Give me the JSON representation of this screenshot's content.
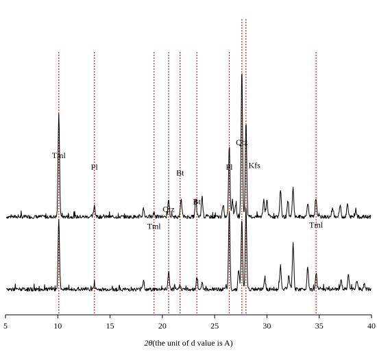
{
  "chart_data": {
    "type": "line",
    "title": "",
    "xlabel_symbol": "2θ",
    "xlabel_text": "(the unit of d value is A)",
    "ylabel": "",
    "xlim": [
      5,
      40
    ],
    "x_ticks": [
      5,
      10,
      15,
      20,
      25,
      30,
      35,
      40
    ],
    "grid": false,
    "legend": "none",
    "reference_lines": [
      {
        "phase": "Tml",
        "x": 10.1
      },
      {
        "phase": "Pl",
        "x": 13.5
      },
      {
        "phase": "Tml",
        "x": 19.2
      },
      {
        "phase": "Qtz",
        "x": 20.6
      },
      {
        "phase": "Bt",
        "x": 21.7
      },
      {
        "phase": "Bt",
        "x": 23.3
      },
      {
        "phase": "Pl",
        "x": 26.4
      },
      {
        "phase": "Qtz",
        "x": 27.6
      },
      {
        "phase": "Kfs",
        "x": 28.0
      },
      {
        "phase": "Tml",
        "x": 34.7
      }
    ],
    "phase_labels": [
      {
        "text": "Tml",
        "x": 10.1,
        "level": 0.93
      },
      {
        "text": "Pl",
        "x": 13.5,
        "level": 0.85
      },
      {
        "text": "Bt",
        "x": 21.7,
        "level": 0.81
      },
      {
        "text": "Qtz",
        "x": 20.6,
        "level": 0.56
      },
      {
        "text": "Tml",
        "x": 19.2,
        "level": 0.44
      },
      {
        "text": "Bt",
        "x": 23.3,
        "level": 0.61
      },
      {
        "text": "Pl",
        "x": 26.4,
        "level": 0.85
      },
      {
        "text": "Qtz",
        "x": 27.6,
        "level": 1.02
      },
      {
        "text": "Kfs",
        "x": 28.8,
        "level": 0.86
      },
      {
        "text": "Tml",
        "x": 34.7,
        "level": 0.45
      }
    ],
    "series": [
      {
        "offset": 0.5,
        "peaks": [
          {
            "x": 10.1,
            "h": 0.72
          },
          {
            "x": 13.5,
            "h": 0.08
          },
          {
            "x": 18.2,
            "h": 0.06
          },
          {
            "x": 19.2,
            "h": 0.03
          },
          {
            "x": 20.6,
            "h": 0.12
          },
          {
            "x": 21.8,
            "h": 0.12
          },
          {
            "x": 23.2,
            "h": 0.12
          },
          {
            "x": 23.8,
            "h": 0.14
          },
          {
            "x": 25.8,
            "h": 0.07
          },
          {
            "x": 26.4,
            "h": 0.49
          },
          {
            "x": 26.7,
            "h": 0.12
          },
          {
            "x": 27.0,
            "h": 0.09
          },
          {
            "x": 27.6,
            "h": 1.01
          },
          {
            "x": 28.0,
            "h": 0.65
          },
          {
            "x": 29.7,
            "h": 0.12
          },
          {
            "x": 30.0,
            "h": 0.12
          },
          {
            "x": 31.3,
            "h": 0.19
          },
          {
            "x": 32.0,
            "h": 0.1
          },
          {
            "x": 32.5,
            "h": 0.2
          },
          {
            "x": 33.9,
            "h": 0.1
          },
          {
            "x": 34.7,
            "h": 0.13
          },
          {
            "x": 36.3,
            "h": 0.06
          },
          {
            "x": 37.0,
            "h": 0.08
          },
          {
            "x": 37.7,
            "h": 0.09
          },
          {
            "x": 38.5,
            "h": 0.05
          }
        ]
      },
      {
        "offset": 0.0,
        "peaks": [
          {
            "x": 10.1,
            "h": 0.48
          },
          {
            "x": 13.5,
            "h": 0.03
          },
          {
            "x": 18.2,
            "h": 0.06
          },
          {
            "x": 20.6,
            "h": 0.12
          },
          {
            "x": 21.7,
            "h": 0.03
          },
          {
            "x": 23.3,
            "h": 0.08
          },
          {
            "x": 23.8,
            "h": 0.05
          },
          {
            "x": 26.4,
            "h": 0.55
          },
          {
            "x": 27.3,
            "h": 0.14
          },
          {
            "x": 27.6,
            "h": 0.48
          },
          {
            "x": 28.0,
            "h": 0.55
          },
          {
            "x": 29.8,
            "h": 0.07
          },
          {
            "x": 31.3,
            "h": 0.16
          },
          {
            "x": 32.1,
            "h": 0.1
          },
          {
            "x": 32.5,
            "h": 0.32
          },
          {
            "x": 33.9,
            "h": 0.16
          },
          {
            "x": 34.7,
            "h": 0.12
          },
          {
            "x": 37.1,
            "h": 0.06
          },
          {
            "x": 37.8,
            "h": 0.1
          },
          {
            "x": 38.6,
            "h": 0.06
          },
          {
            "x": 39.3,
            "h": 0.04
          }
        ]
      }
    ],
    "colors": {
      "trace": "#000000",
      "reference_line": "#c0392b"
    }
  }
}
